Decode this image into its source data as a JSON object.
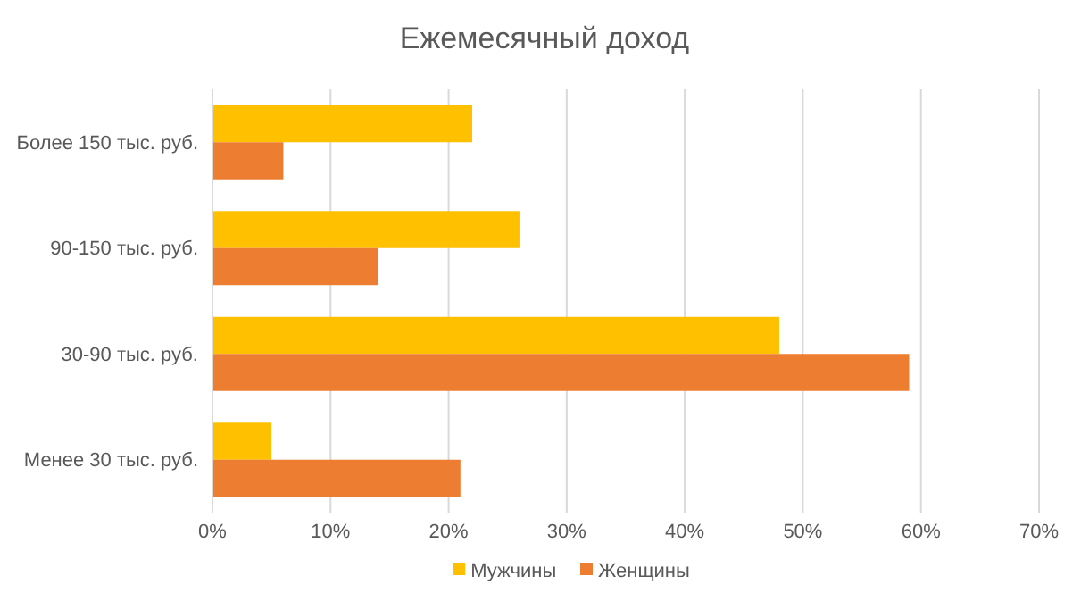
{
  "chart_data": {
    "type": "bar",
    "orientation": "horizontal",
    "title": "Ежемесячный доход",
    "categories": [
      "Более 150 тыс. руб.",
      "90-150 тыс. руб.",
      "30-90 тыс. руб.",
      "Менее 30 тыс. руб."
    ],
    "series": [
      {
        "name": "Мужчины",
        "color": "#ffc000",
        "values": [
          22,
          26,
          48,
          5
        ]
      },
      {
        "name": "Женщины",
        "color": "#ed7d31",
        "values": [
          6,
          14,
          59,
          21
        ]
      }
    ],
    "xlim": [
      0,
      70
    ],
    "xticks": [
      {
        "value": 0,
        "label": "0%"
      },
      {
        "value": 10,
        "label": "10%"
      },
      {
        "value": 20,
        "label": "20%"
      },
      {
        "value": 30,
        "label": "30%"
      },
      {
        "value": 40,
        "label": "40%"
      },
      {
        "value": 50,
        "label": "50%"
      },
      {
        "value": 60,
        "label": "60%"
      },
      {
        "value": 70,
        "label": "70%"
      }
    ],
    "grid": "x",
    "legend": "bottom"
  }
}
